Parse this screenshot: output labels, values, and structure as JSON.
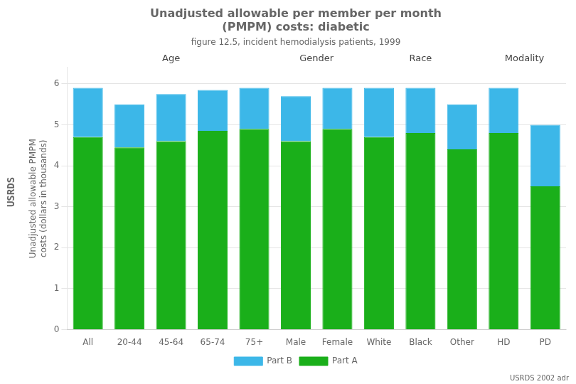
{
  "chart_data": {
    "type": "bar",
    "stacked": true,
    "title": [
      "Unadjusted allowable per member per month",
      "(PMPM) costs: diabetic"
    ],
    "subtitle": "figure 12.5, incident hemodialysis patients, 1999",
    "y_label": [
      "Unadjusted allowable PMPM",
      "costs (dollars in thousands)"
    ],
    "categories": [
      "All",
      "20-44",
      "45-64",
      "65-74",
      "75+",
      "Male",
      "Female",
      "White",
      "Black",
      "Other",
      "HD",
      "PD"
    ],
    "series": [
      {
        "name": "Part A",
        "color": "#1aaf1a",
        "values": [
          4.7,
          4.45,
          4.6,
          4.85,
          4.9,
          4.6,
          4.9,
          4.7,
          4.8,
          4.4,
          4.8,
          3.5
        ]
      },
      {
        "name": "Part B",
        "color": "#3cb7e8",
        "values": [
          1.2,
          1.05,
          1.15,
          1.0,
          1.0,
          1.1,
          1.0,
          1.2,
          1.1,
          1.1,
          1.1,
          1.5
        ]
      }
    ],
    "groups": [
      {
        "label": "Age",
        "categories": [
          "All",
          "20-44",
          "45-64",
          "65-74",
          "75+"
        ]
      },
      {
        "label": "Gender",
        "categories": [
          "Male",
          "Female"
        ]
      },
      {
        "label": "Race",
        "categories": [
          "White",
          "Black",
          "Other"
        ]
      },
      {
        "label": "Modality",
        "categories": [
          "HD",
          "PD"
        ]
      }
    ],
    "sidebar_label": "USRDS",
    "credit": "USRDS 2002 adr",
    "ylim": [
      0,
      6.4
    ],
    "yticks": [
      0,
      1,
      2,
      3,
      4,
      5,
      6
    ],
    "grid": true,
    "legend": "bottom"
  }
}
